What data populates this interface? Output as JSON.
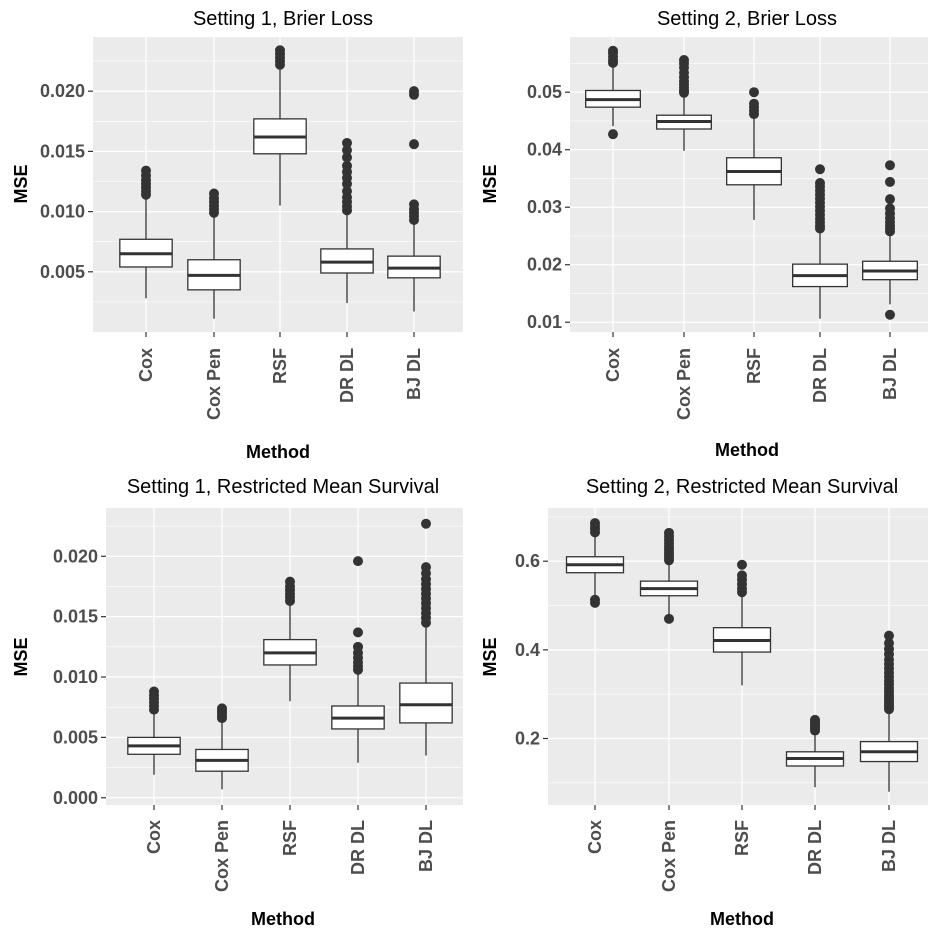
{
  "chart_data": [
    {
      "type": "box",
      "title": "Setting 1, Brier Loss",
      "xlabel": "Method",
      "ylabel": "MSE",
      "categories": [
        "Cox",
        "Cox Pen",
        "RSF",
        "DR DL",
        "BJ DL"
      ],
      "yticks": [
        0.005,
        0.01,
        0.015,
        0.02
      ],
      "ytick_labels": [
        "0.005",
        "0.010",
        "0.015",
        "0.020"
      ],
      "ylim": [
        0.0,
        0.0245
      ],
      "grid": true,
      "boxes": [
        {
          "category": "Cox",
          "whisker_low": 0.0028,
          "q1": 0.0054,
          "median": 0.0065,
          "q3": 0.0077,
          "whisker_high": 0.0112,
          "outliers": [
            0.0114,
            0.0117,
            0.012,
            0.0123,
            0.0126,
            0.013,
            0.0134
          ]
        },
        {
          "category": "Cox Pen",
          "whisker_low": 0.0011,
          "q1": 0.0035,
          "median": 0.0047,
          "q3": 0.006,
          "whisker_high": 0.0097,
          "outliers": [
            0.0099,
            0.0102,
            0.0105,
            0.0108,
            0.0111,
            0.0115
          ]
        },
        {
          "category": "RSF",
          "whisker_low": 0.0105,
          "q1": 0.0148,
          "median": 0.0162,
          "q3": 0.0177,
          "whisker_high": 0.022,
          "outliers": [
            0.0222,
            0.0225,
            0.0228,
            0.0231,
            0.0234
          ]
        },
        {
          "category": "DR DL",
          "whisker_low": 0.0024,
          "q1": 0.0049,
          "median": 0.0058,
          "q3": 0.0069,
          "whisker_high": 0.0098,
          "outliers": [
            0.0101,
            0.0104,
            0.0108,
            0.0112,
            0.0117,
            0.0123,
            0.0128,
            0.0133,
            0.0138,
            0.0145,
            0.0151,
            0.0157
          ]
        },
        {
          "category": "BJ DL",
          "whisker_low": 0.0017,
          "q1": 0.0045,
          "median": 0.0053,
          "q3": 0.0063,
          "whisker_high": 0.0091,
          "outliers": [
            0.0093,
            0.0096,
            0.0099,
            0.0102,
            0.0106,
            0.0156,
            0.0197,
            0.02
          ]
        }
      ]
    },
    {
      "type": "box",
      "title": "Setting 2, Brier Loss",
      "xlabel": "Method",
      "ylabel": "MSE",
      "categories": [
        "Cox",
        "Cox Pen",
        "RSF",
        "DR DL",
        "BJ DL"
      ],
      "yticks": [
        0.01,
        0.02,
        0.03,
        0.04,
        0.05
      ],
      "ytick_labels": [
        "0.01",
        "0.02",
        "0.03",
        "0.04",
        "0.05"
      ],
      "ylim": [
        0.0083,
        0.0596
      ],
      "grid": true,
      "boxes": [
        {
          "category": "Cox",
          "whisker_low": 0.0441,
          "q1": 0.0474,
          "median": 0.0487,
          "q3": 0.0503,
          "whisker_high": 0.0548,
          "outliers": [
            0.0551,
            0.0556,
            0.0562,
            0.0568,
            0.0572,
            0.0427
          ]
        },
        {
          "category": "Cox Pen",
          "whisker_low": 0.0398,
          "q1": 0.0436,
          "median": 0.0449,
          "q3": 0.046,
          "whisker_high": 0.0496,
          "outliers": [
            0.0499,
            0.0503,
            0.0508,
            0.0513,
            0.0519,
            0.0526,
            0.0534,
            0.0543,
            0.055,
            0.0556
          ]
        },
        {
          "category": "RSF",
          "whisker_low": 0.0278,
          "q1": 0.0339,
          "median": 0.0362,
          "q3": 0.0386,
          "whisker_high": 0.0458,
          "outliers": [
            0.0462,
            0.0468,
            0.0474,
            0.048,
            0.05
          ]
        },
        {
          "category": "DR DL",
          "whisker_low": 0.0106,
          "q1": 0.0162,
          "median": 0.0181,
          "q3": 0.0201,
          "whisker_high": 0.0259,
          "outliers": [
            0.0263,
            0.0268,
            0.0274,
            0.028,
            0.0287,
            0.0294,
            0.0301,
            0.0308,
            0.0315,
            0.0322,
            0.0329,
            0.0336,
            0.0342,
            0.0366
          ]
        },
        {
          "category": "BJ DL",
          "whisker_low": 0.0131,
          "q1": 0.0174,
          "median": 0.0189,
          "q3": 0.0206,
          "whisker_high": 0.0254,
          "outliers": [
            0.0258,
            0.0263,
            0.0268,
            0.0274,
            0.0281,
            0.0289,
            0.0298,
            0.0314,
            0.0344,
            0.0373,
            0.0113
          ]
        }
      ]
    },
    {
      "type": "box",
      "title": "Setting 1, Restricted Mean Survival",
      "xlabel": "Method",
      "ylabel": "MSE",
      "categories": [
        "Cox",
        "Cox Pen",
        "RSF",
        "DR DL",
        "BJ DL"
      ],
      "yticks": [
        0.0,
        0.005,
        0.01,
        0.015,
        0.02
      ],
      "ytick_labels": [
        "0.000",
        "0.005",
        "0.010",
        "0.015",
        "0.020"
      ],
      "ylim": [
        -0.0006,
        0.024
      ],
      "grid": true,
      "boxes": [
        {
          "category": "Cox",
          "whisker_low": 0.0019,
          "q1": 0.0036,
          "median": 0.0043,
          "q3": 0.005,
          "whisker_high": 0.0071,
          "outliers": [
            0.0073,
            0.0076,
            0.0079,
            0.0082,
            0.0085,
            0.0088
          ]
        },
        {
          "category": "Cox Pen",
          "whisker_low": 0.0007,
          "q1": 0.0022,
          "median": 0.0031,
          "q3": 0.004,
          "whisker_high": 0.0064,
          "outliers": [
            0.0066,
            0.0068,
            0.007,
            0.0072,
            0.0074
          ]
        },
        {
          "category": "RSF",
          "whisker_low": 0.008,
          "q1": 0.011,
          "median": 0.012,
          "q3": 0.0131,
          "whisker_high": 0.0161,
          "outliers": [
            0.0163,
            0.0166,
            0.0169,
            0.0172,
            0.0175,
            0.0179
          ]
        },
        {
          "category": "DR DL",
          "whisker_low": 0.0029,
          "q1": 0.0057,
          "median": 0.0066,
          "q3": 0.0076,
          "whisker_high": 0.0104,
          "outliers": [
            0.0106,
            0.0109,
            0.0112,
            0.0116,
            0.012,
            0.0125,
            0.0137,
            0.0196
          ]
        },
        {
          "category": "BJ DL",
          "whisker_low": 0.0035,
          "q1": 0.0062,
          "median": 0.0077,
          "q3": 0.0095,
          "whisker_high": 0.0142,
          "outliers": [
            0.0145,
            0.0149,
            0.0153,
            0.0157,
            0.0161,
            0.0165,
            0.0169,
            0.0173,
            0.0177,
            0.0181,
            0.0186,
            0.0191,
            0.0227
          ]
        }
      ]
    },
    {
      "type": "box",
      "title": "Setting 2, Restricted Mean Survival",
      "xlabel": "Method",
      "ylabel": "MSE",
      "categories": [
        "Cox",
        "Cox Pen",
        "RSF",
        "DR DL",
        "BJ DL"
      ],
      "yticks": [
        0.2,
        0.4,
        0.6
      ],
      "ytick_labels": [
        "0.2",
        "0.4",
        "0.6"
      ],
      "ylim": [
        0.05,
        0.72
      ],
      "grid": true,
      "boxes": [
        {
          "category": "Cox",
          "whisker_low": 0.52,
          "q1": 0.574,
          "median": 0.592,
          "q3": 0.61,
          "whisker_high": 0.66,
          "outliers": [
            0.665,
            0.672,
            0.679,
            0.686,
            0.513,
            0.506
          ]
        },
        {
          "category": "Cox Pen",
          "whisker_low": 0.48,
          "q1": 0.522,
          "median": 0.538,
          "q3": 0.555,
          "whisker_high": 0.598,
          "outliers": [
            0.602,
            0.608,
            0.614,
            0.62,
            0.627,
            0.634,
            0.641,
            0.648,
            0.656,
            0.664,
            0.47
          ]
        },
        {
          "category": "RSF",
          "whisker_low": 0.32,
          "q1": 0.395,
          "median": 0.421,
          "q3": 0.45,
          "whisker_high": 0.525,
          "outliers": [
            0.53,
            0.538,
            0.548,
            0.558,
            0.568,
            0.592
          ]
        },
        {
          "category": "DR DL",
          "whisker_low": 0.09,
          "q1": 0.138,
          "median": 0.155,
          "q3": 0.17,
          "whisker_high": 0.215,
          "outliers": [
            0.218,
            0.222,
            0.226,
            0.23,
            0.234,
            0.238,
            0.242
          ]
        },
        {
          "category": "BJ DL",
          "whisker_low": 0.08,
          "q1": 0.148,
          "median": 0.17,
          "q3": 0.193,
          "whisker_high": 0.262,
          "outliers": [
            0.266,
            0.271,
            0.276,
            0.282,
            0.288,
            0.294,
            0.3,
            0.307,
            0.314,
            0.322,
            0.33,
            0.339,
            0.348,
            0.358,
            0.368,
            0.378,
            0.39,
            0.402,
            0.415,
            0.432
          ]
        }
      ]
    }
  ]
}
